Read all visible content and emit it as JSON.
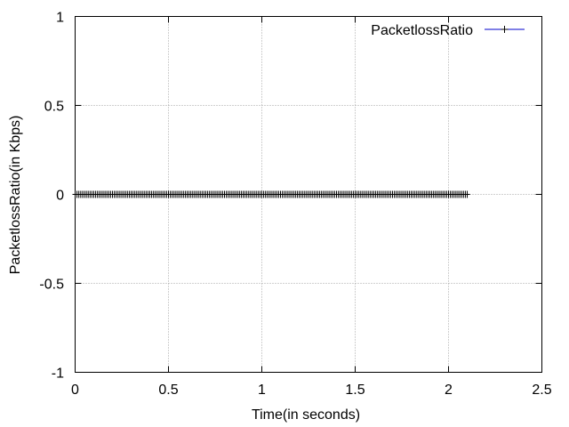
{
  "chart_data": {
    "type": "line",
    "title": "",
    "xlabel": "Time(in seconds)",
    "ylabel": "PacketlossRatio(in Kbps)",
    "xlim": [
      0,
      2.5
    ],
    "ylim": [
      -1,
      1
    ],
    "x_ticks": [
      0,
      0.5,
      1,
      1.5,
      2,
      2.5
    ],
    "x_tick_labels": [
      "0",
      "0.5",
      "1",
      "1.5",
      "2",
      "2.5"
    ],
    "y_ticks": [
      -1,
      -0.5,
      0,
      0.5,
      1
    ],
    "y_tick_labels": [
      "-1",
      "-0.5",
      "0",
      "0.5",
      "1"
    ],
    "grid": true,
    "legend_position": "top-right",
    "series": [
      {
        "name": "PacketlossRatio",
        "color": "#0000cd",
        "marker": "plus",
        "marker_color": "#000000",
        "x_start": 0,
        "x_end": 2.1,
        "x_step": 0.01,
        "y_constant": 0
      }
    ]
  }
}
